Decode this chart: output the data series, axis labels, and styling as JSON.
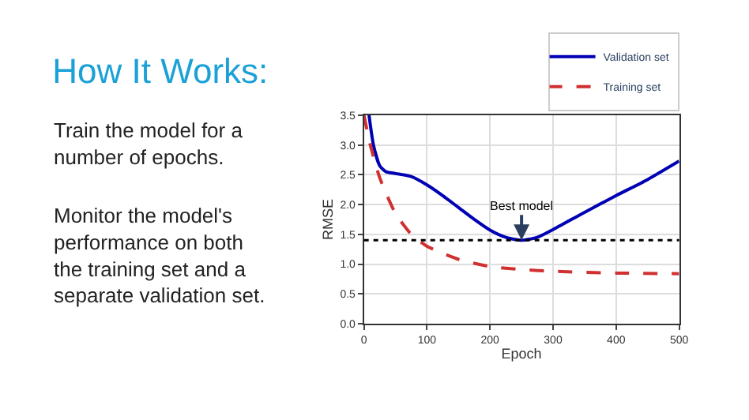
{
  "chart_data": {
    "type": "line",
    "title": "How It Works:",
    "xlabel": "Epoch",
    "ylabel": "RMSE",
    "annotations": [
      "Train the model for a\nnumber of epochs.",
      "Monitor the model's\nperformance on both\nthe training set and a\nseparate validation set.",
      {
        "text": "Best model",
        "x": 250,
        "y": 1.4
      }
    ],
    "series": [
      {
        "name": "Validation set",
        "color": "#0000b4",
        "line_style": "solid",
        "x": [
          8,
          15,
          25,
          35,
          50,
          75,
          100,
          125,
          150,
          175,
          200,
          225,
          250,
          275,
          300,
          350,
          400,
          450,
          500
        ],
        "values": [
          3.5,
          3.0,
          2.65,
          2.55,
          2.52,
          2.47,
          2.33,
          2.15,
          1.95,
          1.75,
          1.57,
          1.45,
          1.4,
          1.45,
          1.58,
          1.87,
          2.15,
          2.42,
          2.73
        ]
      },
      {
        "name": "Training set",
        "color": "#d03030",
        "line_style": "dashed",
        "x": [
          0,
          10,
          25,
          50,
          75,
          100,
          150,
          200,
          250,
          300,
          400,
          500
        ],
        "values": [
          3.5,
          3.0,
          2.45,
          1.85,
          1.5,
          1.3,
          1.08,
          0.96,
          0.91,
          0.88,
          0.85,
          0.84
        ]
      }
    ],
    "ref_lines": [
      {
        "axis": "y",
        "value": 1.4,
        "color": "#000000",
        "line_style": "dotted"
      }
    ],
    "xlim": [
      0,
      500
    ],
    "xticks": [
      0,
      100,
      200,
      300,
      400,
      500
    ],
    "ylim": [
      0,
      3.5
    ],
    "yticks": [
      {
        "value": 0,
        "label": "0.0"
      },
      0.5,
      {
        "value": 1,
        "label": "1.0"
      },
      1.5,
      {
        "value": 2,
        "label": "2.0"
      },
      2.5,
      {
        "value": 3,
        "label": "3.0"
      },
      3.5
    ],
    "grid": true,
    "legend": "top right",
    "marker": "none"
  }
}
